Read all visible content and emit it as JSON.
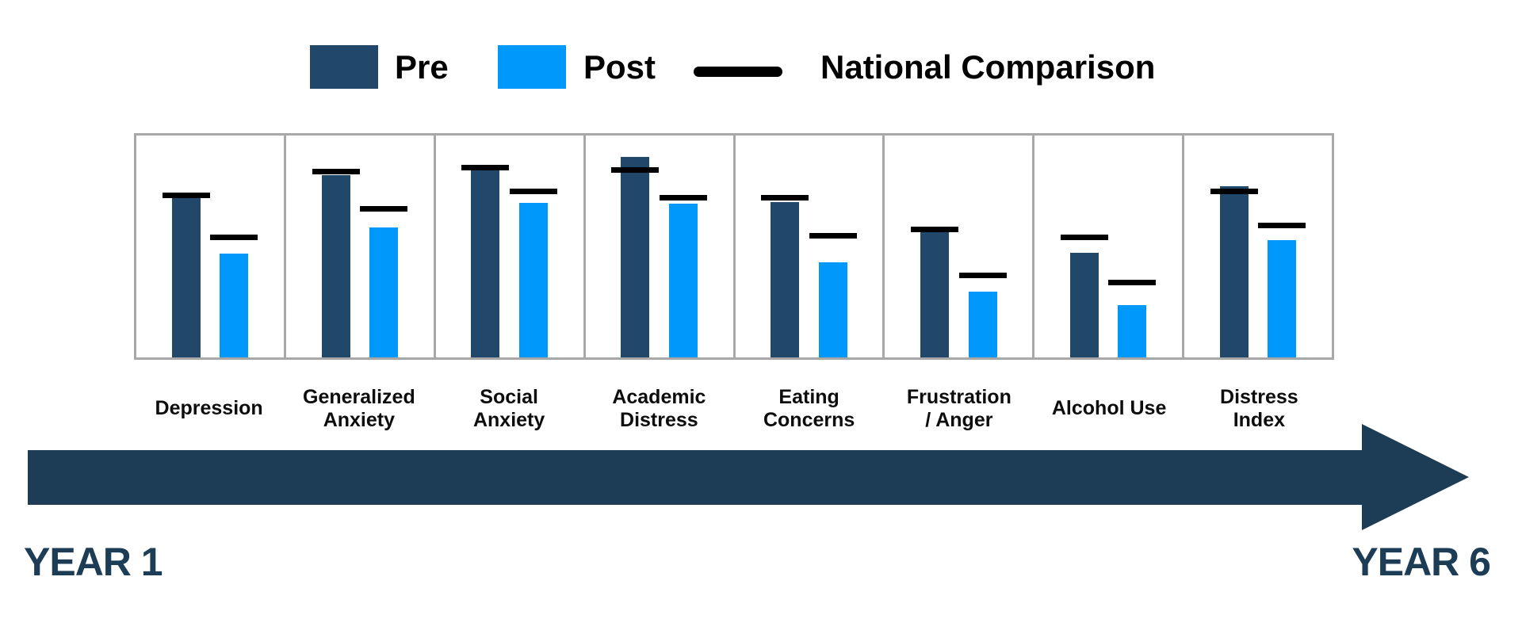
{
  "legend": {
    "pre_label": "Pre",
    "post_label": "Post",
    "national_label": "National Comparison"
  },
  "timeline": {
    "start_label": "YEAR 1",
    "end_label": "YEAR 6"
  },
  "colors": {
    "pre": "#21486B",
    "post": "#0098FA",
    "national_line": "#000000",
    "arrow": "#1D3C55",
    "panel_border": "#A8A8A8"
  },
  "chart_data": {
    "type": "bar",
    "title": "",
    "categories": [
      "Depression",
      "Generalized\nAnxiety",
      "Social\nAnxiety",
      "Academic\nDistress",
      "Eating\nConcerns",
      "Frustration\n/ Anger",
      "Alcohol Use",
      "Distress\nIndex"
    ],
    "series": [
      {
        "name": "Pre",
        "color": "#21486B",
        "values": [
          71.7,
          82.2,
          84.3,
          90.2,
          69.9,
          56.3,
          47.2,
          77.3
        ]
      },
      {
        "name": "Post",
        "color": "#0098FA",
        "values": [
          46.9,
          58.7,
          69.6,
          69.2,
          43.0,
          29.7,
          23.4,
          52.8
        ]
      }
    ],
    "national_comparison": {
      "name": "National Comparison",
      "color": "#000000",
      "pre": [
        73.1,
        83.6,
        85.7,
        84.6,
        72.0,
        57.7,
        54.2,
        74.8
      ],
      "post": [
        54.2,
        67.1,
        74.8,
        72.0,
        54.9,
        37.1,
        33.9,
        59.4
      ]
    },
    "ylim": [
      0,
      100
    ],
    "value_unit": "relative height, % of panel (no numeric axis shown)",
    "legend_position": "top",
    "grid": false
  }
}
